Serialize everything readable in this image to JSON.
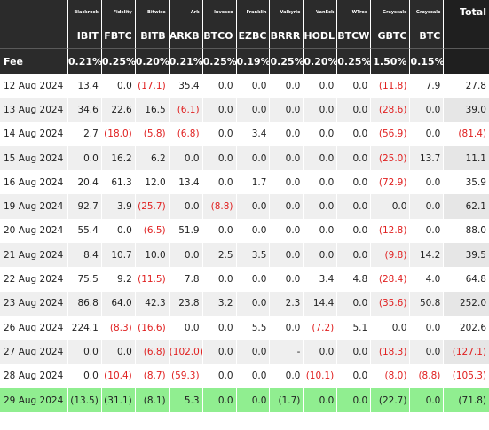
{
  "table": {
    "issuers": [
      "Blackrock",
      "Fidelity",
      "Bitwise",
      "Ark",
      "Invesco",
      "Franklin",
      "Valkyrie",
      "VanEck",
      "WTree",
      "Grayscale",
      "Grayscale"
    ],
    "total_header": "Total",
    "tickers": [
      "IBIT",
      "FBTC",
      "BITB",
      "ARKB",
      "BTCO",
      "EZBC",
      "BRRR",
      "HODL",
      "BTCW",
      "GBTC",
      "BTC"
    ],
    "fee_label": "Fee",
    "fees": [
      "0.21%",
      "0.25%",
      "0.20%",
      "0.21%",
      "0.25%",
      "0.19%",
      "0.25%",
      "0.20%",
      "0.25%",
      "1.50%",
      "0.15%"
    ],
    "negative_color": "#e02020",
    "highlight_color": "#90ee90",
    "header_bg": "#2b2b2b",
    "rows": [
      {
        "date": "12 Aug 2024",
        "values": [
          "13.4",
          "0.0",
          "(17.1)",
          "35.4",
          "0.0",
          "0.0",
          "0.0",
          "0.0",
          "0.0",
          "(11.8)",
          "7.9"
        ],
        "total": "27.8"
      },
      {
        "date": "13 Aug 2024",
        "values": [
          "34.6",
          "22.6",
          "16.5",
          "(6.1)",
          "0.0",
          "0.0",
          "0.0",
          "0.0",
          "0.0",
          "(28.6)",
          "0.0"
        ],
        "total": "39.0"
      },
      {
        "date": "14 Aug 2024",
        "values": [
          "2.7",
          "(18.0)",
          "(5.8)",
          "(6.8)",
          "0.0",
          "3.4",
          "0.0",
          "0.0",
          "0.0",
          "(56.9)",
          "0.0"
        ],
        "total": "(81.4)"
      },
      {
        "date": "15 Aug 2024",
        "values": [
          "0.0",
          "16.2",
          "6.2",
          "0.0",
          "0.0",
          "0.0",
          "0.0",
          "0.0",
          "0.0",
          "(25.0)",
          "13.7"
        ],
        "total": "11.1"
      },
      {
        "date": "16 Aug 2024",
        "values": [
          "20.4",
          "61.3",
          "12.0",
          "13.4",
          "0.0",
          "1.7",
          "0.0",
          "0.0",
          "0.0",
          "(72.9)",
          "0.0"
        ],
        "total": "35.9"
      },
      {
        "date": "19 Aug 2024",
        "values": [
          "92.7",
          "3.9",
          "(25.7)",
          "0.0",
          "(8.8)",
          "0.0",
          "0.0",
          "0.0",
          "0.0",
          "0.0",
          "0.0"
        ],
        "total": "62.1"
      },
      {
        "date": "20 Aug 2024",
        "values": [
          "55.4",
          "0.0",
          "(6.5)",
          "51.9",
          "0.0",
          "0.0",
          "0.0",
          "0.0",
          "0.0",
          "(12.8)",
          "0.0"
        ],
        "total": "88.0"
      },
      {
        "date": "21 Aug 2024",
        "values": [
          "8.4",
          "10.7",
          "10.0",
          "0.0",
          "2.5",
          "3.5",
          "0.0",
          "0.0",
          "0.0",
          "(9.8)",
          "14.2"
        ],
        "total": "39.5"
      },
      {
        "date": "22 Aug 2024",
        "values": [
          "75.5",
          "9.2",
          "(11.5)",
          "7.8",
          "0.0",
          "0.0",
          "0.0",
          "3.4",
          "4.8",
          "(28.4)",
          "4.0"
        ],
        "total": "64.8"
      },
      {
        "date": "23 Aug 2024",
        "values": [
          "86.8",
          "64.0",
          "42.3",
          "23.8",
          "3.2",
          "0.0",
          "2.3",
          "14.4",
          "0.0",
          "(35.6)",
          "50.8"
        ],
        "total": "252.0"
      },
      {
        "date": "26 Aug 2024",
        "values": [
          "224.1",
          "(8.3)",
          "(16.6)",
          "0.0",
          "0.0",
          "5.5",
          "0.0",
          "(7.2)",
          "5.1",
          "0.0",
          "0.0"
        ],
        "total": "202.6"
      },
      {
        "date": "27 Aug 2024",
        "values": [
          "0.0",
          "0.0",
          "(6.8)",
          "(102.0)",
          "0.0",
          "0.0",
          "-",
          "0.0",
          "0.0",
          "(18.3)",
          "0.0"
        ],
        "total": "(127.1)"
      },
      {
        "date": "28 Aug 2024",
        "values": [
          "0.0",
          "(10.4)",
          "(8.7)",
          "(59.3)",
          "0.0",
          "0.0",
          "0.0",
          "(10.1)",
          "0.0",
          "(8.0)",
          "(8.8)"
        ],
        "total": "(105.3)"
      },
      {
        "date": "29 Aug 2024",
        "values": [
          "(13.5)",
          "(31.1)",
          "(8.1)",
          "5.3",
          "0.0",
          "0.0",
          "(1.7)",
          "0.0",
          "0.0",
          "(22.7)",
          "0.0"
        ],
        "total": "(71.8)",
        "highlighted": true
      }
    ]
  }
}
